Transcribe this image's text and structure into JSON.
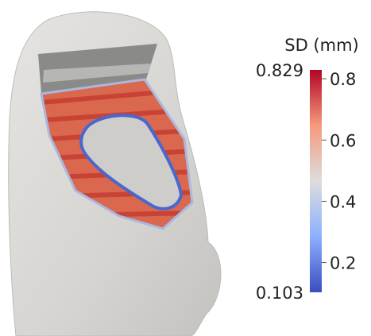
{
  "chart_data": {
    "type": "colorbar",
    "title": "SD (mm)",
    "ylim": [
      0.103,
      0.829
    ],
    "yticks": [
      0.2,
      0.4,
      0.6,
      0.8
    ],
    "colormap": [
      "#3b4cc0",
      "#8db0fe",
      "#dddddd",
      "#f49a7b",
      "#b40426"
    ]
  }
}
